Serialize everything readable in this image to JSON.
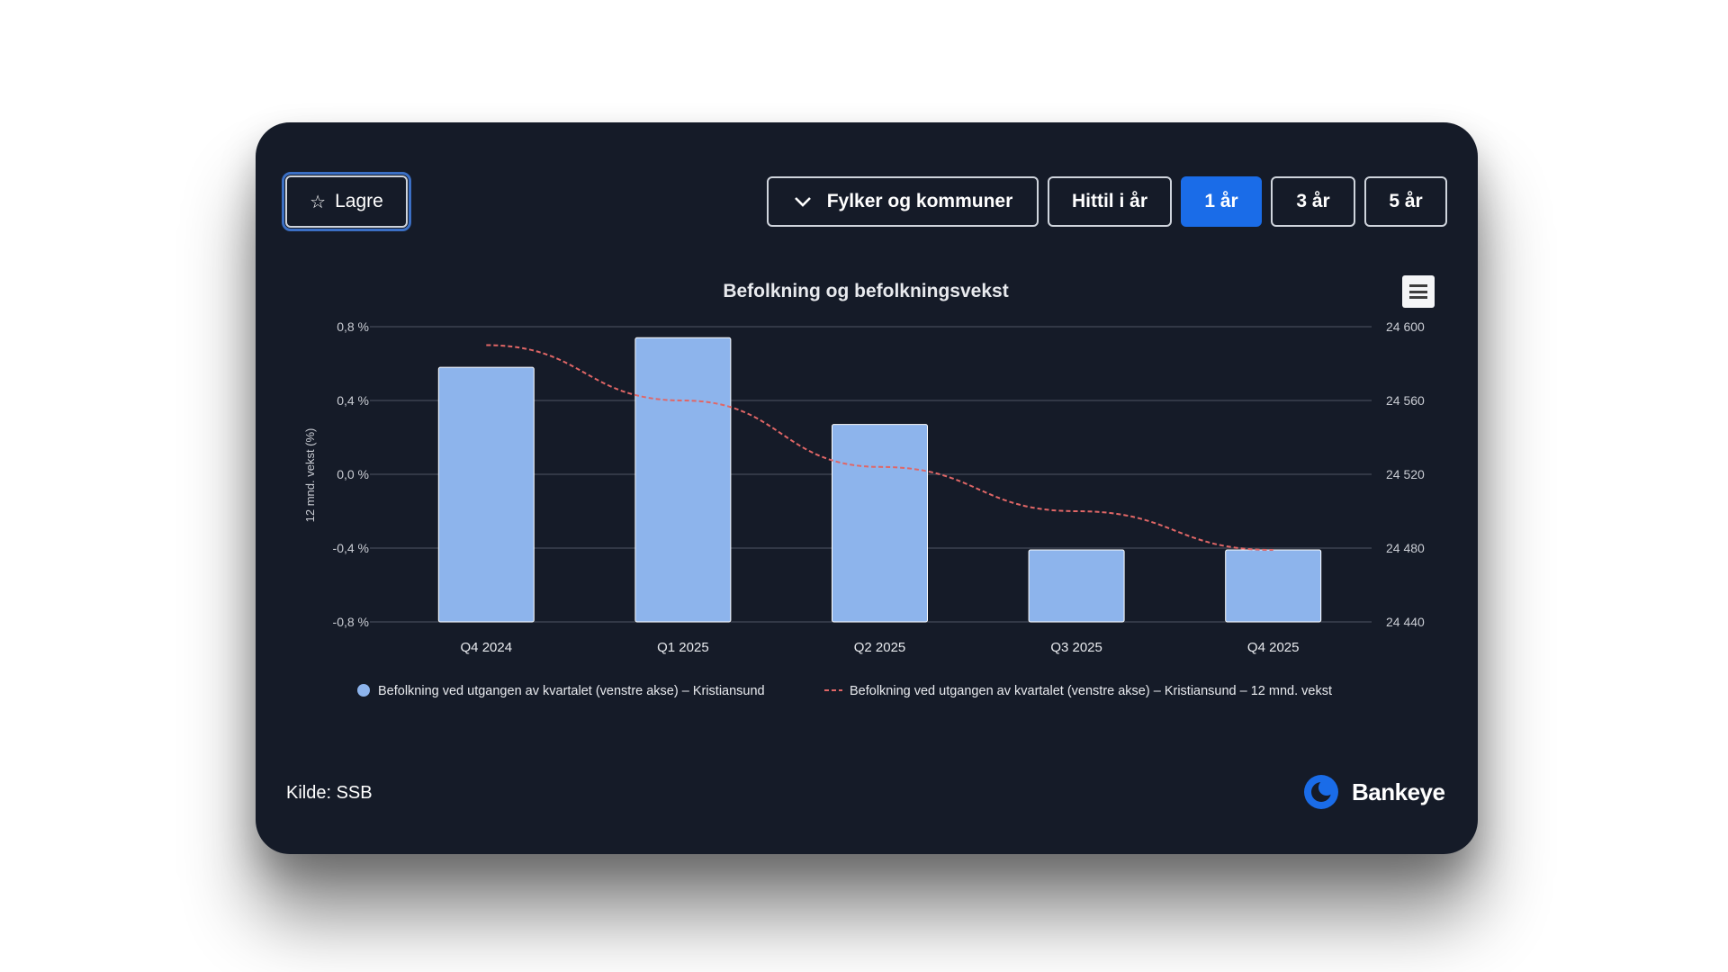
{
  "toolbar": {
    "save_label": "Lagre",
    "region_label": "Fylker og kommuner",
    "range_buttons": [
      "Hittil i år",
      "1 år",
      "3 år",
      "5 år"
    ],
    "active_range": "1 år"
  },
  "footer": {
    "source": "Kilde: SSB",
    "brand": "Bankeye"
  },
  "colors": {
    "background": "#151b28",
    "bar": "#8db4ec",
    "line": "#e06666",
    "active_button": "#1a6ce8"
  },
  "chart_data": {
    "type": "bar",
    "title": "Befolkning og befolkningsvekst",
    "categories": [
      "Q4 2024",
      "Q1 2025",
      "Q2 2025",
      "Q3 2025",
      "Q4 2025"
    ],
    "y_left": {
      "label": "12 mnd. vekst (%)",
      "ticks": [
        "0,8 %",
        "0,4 %",
        "0,0 %",
        "-0,4 %",
        "-0,8 %"
      ],
      "range": [
        -0.8,
        0.8
      ]
    },
    "y_right": {
      "ticks": [
        "24 600",
        "24 560",
        "24 520",
        "24 480",
        "24 440"
      ],
      "range": [
        24440,
        24600
      ]
    },
    "series": [
      {
        "name": "Befolkning ved utgangen av kvartalet (venstre akse) – Kristiansund",
        "type": "bar",
        "axis": "left",
        "values": [
          0.58,
          0.74,
          0.27,
          -0.41,
          -0.41
        ]
      },
      {
        "name": "Befolkning ved utgangen av kvartalet (venstre akse) – Kristiansund – 12 mnd. vekst",
        "type": "line",
        "style": "dashed",
        "axis": "right",
        "values": [
          24590,
          24560,
          24524,
          24500,
          24479
        ]
      }
    ],
    "grid": true,
    "legend_position": "bottom"
  }
}
